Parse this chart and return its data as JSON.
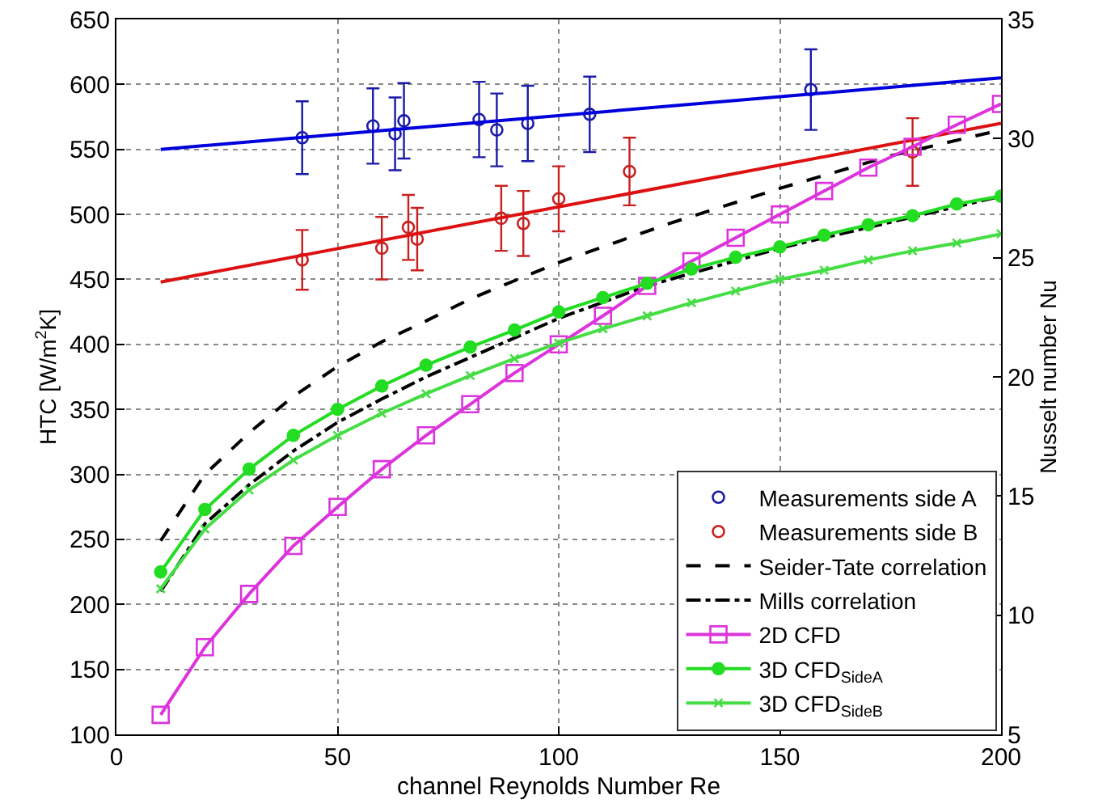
{
  "chart_data": {
    "type": "line",
    "xlabel": "channel Reynolds Number Re",
    "ylabel": "HTC [W/m$^{2}$K]",
    "y2label": "Nusselt number Nu",
    "xlim": [
      0,
      200
    ],
    "xticks": [
      0,
      50,
      100,
      150,
      200
    ],
    "ylim": [
      100,
      650
    ],
    "yticks": [
      100,
      150,
      200,
      250,
      300,
      350,
      400,
      450,
      500,
      550,
      600,
      650
    ],
    "y2lim": [
      5,
      35
    ],
    "y2ticks": [
      5,
      10,
      15,
      20,
      25,
      30,
      35
    ],
    "grid": true,
    "legend": "bottom right",
    "series": [
      {
        "name": "Measurements side A",
        "type": "scatter",
        "marker": "circle",
        "color": "#1a1aa8",
        "x": [
          42,
          58,
          63,
          65,
          82,
          86,
          93,
          107,
          157
        ],
        "values": [
          559,
          568,
          562,
          572,
          573,
          565,
          570,
          577,
          596
        ],
        "errors": [
          28,
          29,
          28,
          29,
          29,
          28,
          29,
          29,
          31
        ]
      },
      {
        "type": "line",
        "color": "#0000dd",
        "x": [
          10,
          200
        ],
        "values": [
          550,
          605
        ]
      },
      {
        "name": "Measurements side B",
        "type": "scatter",
        "marker": "circle",
        "color": "#c82020",
        "x": [
          42,
          60,
          66,
          68,
          87,
          92,
          100,
          116,
          180
        ],
        "values": [
          465,
          474,
          490,
          481,
          497,
          493,
          512,
          533,
          548
        ],
        "errors": [
          23,
          24,
          25,
          24,
          25,
          25,
          25,
          26,
          26
        ]
      },
      {
        "type": "line",
        "color": "#dd1111",
        "x": [
          10,
          200
        ],
        "values": [
          448,
          570
        ]
      },
      {
        "name": "Seider-Tate correlation",
        "type": "line",
        "line_style": "dashed",
        "marker": "none",
        "color": "#000000",
        "x": [
          10,
          20,
          30,
          40,
          50,
          60,
          70,
          80,
          100,
          125,
          150,
          175,
          200
        ],
        "values": [
          249,
          300,
          332,
          360,
          383,
          402,
          418,
          435,
          463,
          493,
          520,
          545,
          565
        ]
      },
      {
        "name": "Mills correlation",
        "type": "line",
        "line_style": "dashdot",
        "marker": "none",
        "color": "#000000",
        "x": [
          10,
          20,
          30,
          40,
          50,
          60,
          70,
          80,
          100,
          120,
          150,
          175,
          200
        ],
        "values": [
          210,
          262,
          292,
          318,
          340,
          358,
          375,
          390,
          420,
          445,
          474,
          494,
          514
        ]
      },
      {
        "name": "2D CFD",
        "type": "line",
        "marker": "square",
        "color": "#dd33dd",
        "x": [
          10,
          20,
          30,
          40,
          50,
          60,
          70,
          80,
          90,
          100,
          110,
          120,
          130,
          140,
          150,
          160,
          170,
          180,
          190,
          200
        ],
        "values": [
          115,
          167,
          208,
          245,
          275,
          304,
          330,
          354,
          378,
          400,
          422,
          445,
          464,
          482,
          500,
          518,
          536,
          552,
          569,
          585
        ]
      },
      {
        "name": "3D CFD$_{SideA}$",
        "type": "line",
        "marker": "circle",
        "color": "#22dd22",
        "x": [
          10,
          20,
          30,
          40,
          50,
          60,
          70,
          80,
          90,
          100,
          110,
          120,
          130,
          140,
          150,
          160,
          170,
          180,
          190,
          200
        ],
        "values": [
          225,
          273,
          304,
          330,
          350,
          368,
          384,
          398,
          411,
          425,
          436,
          447,
          458,
          467,
          475,
          484,
          492,
          499,
          508,
          514
        ]
      },
      {
        "name": "3D CFD$_{SideB}$",
        "type": "line",
        "marker": "cross",
        "color": "#44dd44",
        "x": [
          10,
          20,
          30,
          40,
          50,
          60,
          70,
          80,
          90,
          100,
          110,
          120,
          130,
          140,
          150,
          160,
          170,
          180,
          190,
          200
        ],
        "values": [
          212,
          258,
          288,
          311,
          330,
          347,
          362,
          376,
          389,
          401,
          412,
          422,
          432,
          441,
          450,
          457,
          465,
          472,
          478,
          485
        ]
      }
    ]
  }
}
